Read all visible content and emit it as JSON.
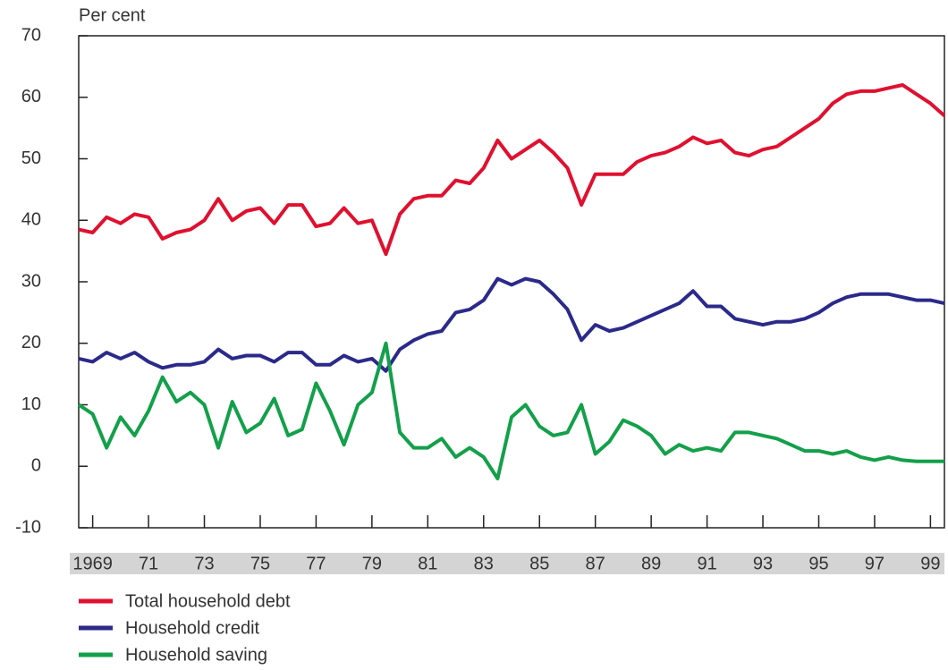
{
  "chart_data": {
    "type": "line",
    "y_axis_label": "Per cent",
    "x": [
      1968.5,
      1969,
      1969.5,
      1970,
      1970.5,
      1971,
      1971.5,
      1972,
      1972.5,
      1973,
      1973.5,
      1974,
      1974.5,
      1975,
      1975.5,
      1976,
      1976.5,
      1977,
      1977.5,
      1978,
      1978.5,
      1979,
      1979.5,
      1980,
      1980.5,
      1981,
      1981.5,
      1982,
      1982.5,
      1983,
      1983.5,
      1984,
      1984.5,
      1985,
      1985.5,
      1986,
      1986.5,
      1987,
      1987.5,
      1988,
      1988.5,
      1989,
      1989.5,
      1990,
      1990.5,
      1991,
      1991.5,
      1992,
      1992.5,
      1993,
      1993.5,
      1994,
      1994.5,
      1995,
      1995.5,
      1996,
      1996.5,
      1997,
      1997.5,
      1998,
      1998.5,
      1999,
      1999.5
    ],
    "series": [
      {
        "name": "Total household debt",
        "color": "#e0102f",
        "values": [
          38.5,
          38,
          40.5,
          39.5,
          41,
          40.5,
          37,
          38,
          38.5,
          40,
          43.5,
          40,
          41.5,
          42,
          39.5,
          42.5,
          42.5,
          39,
          39.5,
          42,
          39.5,
          40,
          34.5,
          41,
          43.5,
          44,
          44,
          46.5,
          46,
          48.5,
          53,
          50,
          51.5,
          53,
          51,
          48.5,
          42.5,
          47.5,
          47.5,
          47.5,
          49.5,
          50.5,
          51,
          52,
          53.5,
          52.5,
          53,
          51,
          50.5,
          51.5,
          52,
          53.5,
          55,
          56.5,
          59,
          60.5,
          61,
          61,
          61.5,
          62,
          60.5,
          59,
          57
        ]
      },
      {
        "name": "Household credit",
        "color": "#2b2a8a",
        "values": [
          17.5,
          17,
          18.5,
          17.5,
          18.5,
          17,
          16,
          16.5,
          16.5,
          17,
          19,
          17.5,
          18,
          18,
          17,
          18.5,
          18.5,
          16.5,
          16.5,
          18,
          17,
          17.5,
          15.5,
          19,
          20.5,
          21.5,
          22,
          25,
          25.5,
          27,
          30.5,
          29.5,
          30.5,
          30,
          28,
          25.5,
          20.5,
          23,
          22,
          22.5,
          23.5,
          24.5,
          25.5,
          26.5,
          28.5,
          26,
          26,
          24,
          23.5,
          23,
          23.5,
          23.5,
          24,
          25,
          26.5,
          27.5,
          28,
          28,
          28,
          27.5,
          27,
          27,
          26.5
        ]
      },
      {
        "name": "Household saving",
        "color": "#13a04a",
        "values": [
          10,
          8.5,
          3,
          8,
          5,
          9,
          14.5,
          10.5,
          12,
          10,
          3,
          10.5,
          5.5,
          7,
          11,
          5,
          6,
          13.5,
          9,
          3.5,
          10,
          12,
          20,
          5.5,
          3,
          3,
          4.5,
          1.5,
          3,
          1.5,
          -2,
          8,
          10,
          6.5,
          5,
          5.5,
          10,
          2,
          4,
          7.5,
          6.5,
          5,
          2,
          3.5,
          2.5,
          3,
          2.5,
          5.5,
          5.5,
          5,
          4.5,
          3.5,
          2.5,
          2.5,
          2,
          2.5,
          1.5,
          1,
          1.5,
          1,
          0.8,
          0.8,
          0.8
        ]
      }
    ],
    "xlim": [
      1968.5,
      1999.5
    ],
    "xticks": [
      {
        "value": 1969,
        "label": "1969"
      },
      {
        "value": 1971,
        "label": "71"
      },
      {
        "value": 1973,
        "label": "73"
      },
      {
        "value": 1975,
        "label": "75"
      },
      {
        "value": 1977,
        "label": "77"
      },
      {
        "value": 1979,
        "label": "79"
      },
      {
        "value": 1981,
        "label": "81"
      },
      {
        "value": 1983,
        "label": "83"
      },
      {
        "value": 1985,
        "label": "85"
      },
      {
        "value": 1987,
        "label": "87"
      },
      {
        "value": 1989,
        "label": "89"
      },
      {
        "value": 1991,
        "label": "91"
      },
      {
        "value": 1993,
        "label": "93"
      },
      {
        "value": 1995,
        "label": "95"
      },
      {
        "value": 1997,
        "label": "97"
      },
      {
        "value": 1999,
        "label": "99"
      }
    ],
    "ylim": [
      -10,
      70
    ],
    "yticks": [
      -10,
      0,
      10,
      20,
      30,
      40,
      50,
      60,
      70
    ],
    "grid": false
  }
}
